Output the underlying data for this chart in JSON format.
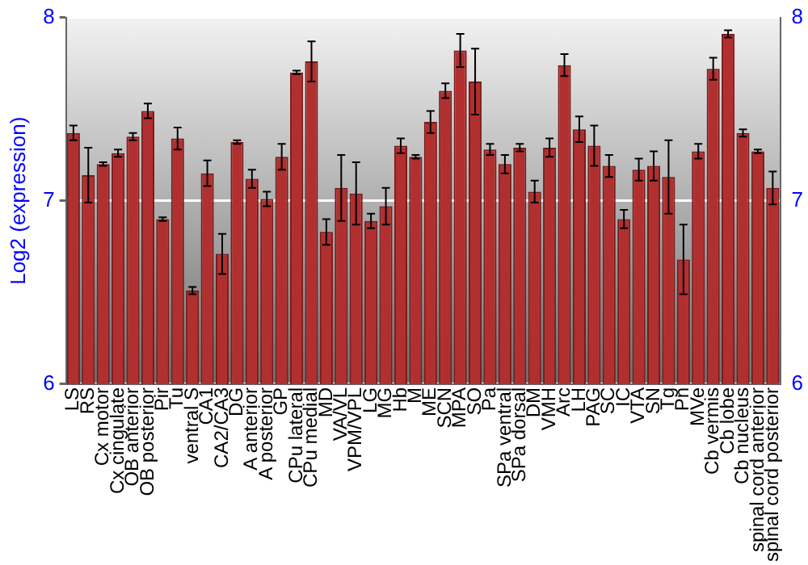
{
  "chart_data": {
    "type": "bar",
    "ylabel": "Log2 (expression)",
    "categories": [
      "LS",
      "RS",
      "Cx motor",
      "Cx cingulate",
      "OB anterior",
      "OB posterior",
      "Pir",
      "Tu",
      "ventral S",
      "CA1",
      "CA2/CA3",
      "DG",
      "A anterior",
      "A posterior",
      "GP",
      "CPu lateral",
      "CPu medial",
      "MD",
      "VA/VL",
      "VPM/VPL",
      "LG",
      "MG",
      "Hb",
      "M",
      "ME",
      "SCN",
      "MPA",
      "SO",
      "Pa",
      "SPa ventral",
      "SPa dorsal",
      "DM",
      "VMH",
      "Arc",
      "LH",
      "PAG",
      "SC",
      "IC",
      "VTA",
      "SN",
      "Tg",
      "Pn",
      "MVe",
      "Cb vermis",
      "Cb lobe",
      "Cb nucleus",
      "spinal cord anterior",
      "spinal cord posterior"
    ],
    "values": [
      7.37,
      7.14,
      7.2,
      7.26,
      7.35,
      7.49,
      6.9,
      7.34,
      6.51,
      7.15,
      6.71,
      7.32,
      7.12,
      7.01,
      7.24,
      7.7,
      7.76,
      6.83,
      7.07,
      7.04,
      6.89,
      6.97,
      7.3,
      7.24,
      7.43,
      7.6,
      7.82,
      7.65,
      7.28,
      7.2,
      7.29,
      7.05,
      7.29,
      7.74,
      7.39,
      7.3,
      7.19,
      6.9,
      7.17,
      7.19,
      7.13,
      6.68,
      7.27,
      7.72,
      7.91,
      7.37,
      7.27,
      7.07
    ],
    "errors": [
      0.04,
      0.15,
      0.01,
      0.02,
      0.02,
      0.04,
      0.01,
      0.06,
      0.02,
      0.07,
      0.11,
      0.01,
      0.05,
      0.04,
      0.07,
      0.01,
      0.11,
      0.07,
      0.18,
      0.17,
      0.04,
      0.1,
      0.04,
      0.01,
      0.06,
      0.04,
      0.09,
      0.18,
      0.03,
      0.05,
      0.02,
      0.06,
      0.05,
      0.06,
      0.07,
      0.11,
      0.06,
      0.05,
      0.06,
      0.08,
      0.2,
      0.19,
      0.04,
      0.06,
      0.02,
      0.02,
      0.01,
      0.09
    ],
    "color": "#b22f2f",
    "ylim": [
      6,
      8
    ],
    "yticks": [
      6,
      7,
      8
    ],
    "y2lim": [
      6,
      8
    ],
    "y2ticks": [
      6,
      7,
      8
    ],
    "grid": "y",
    "legend": false
  }
}
